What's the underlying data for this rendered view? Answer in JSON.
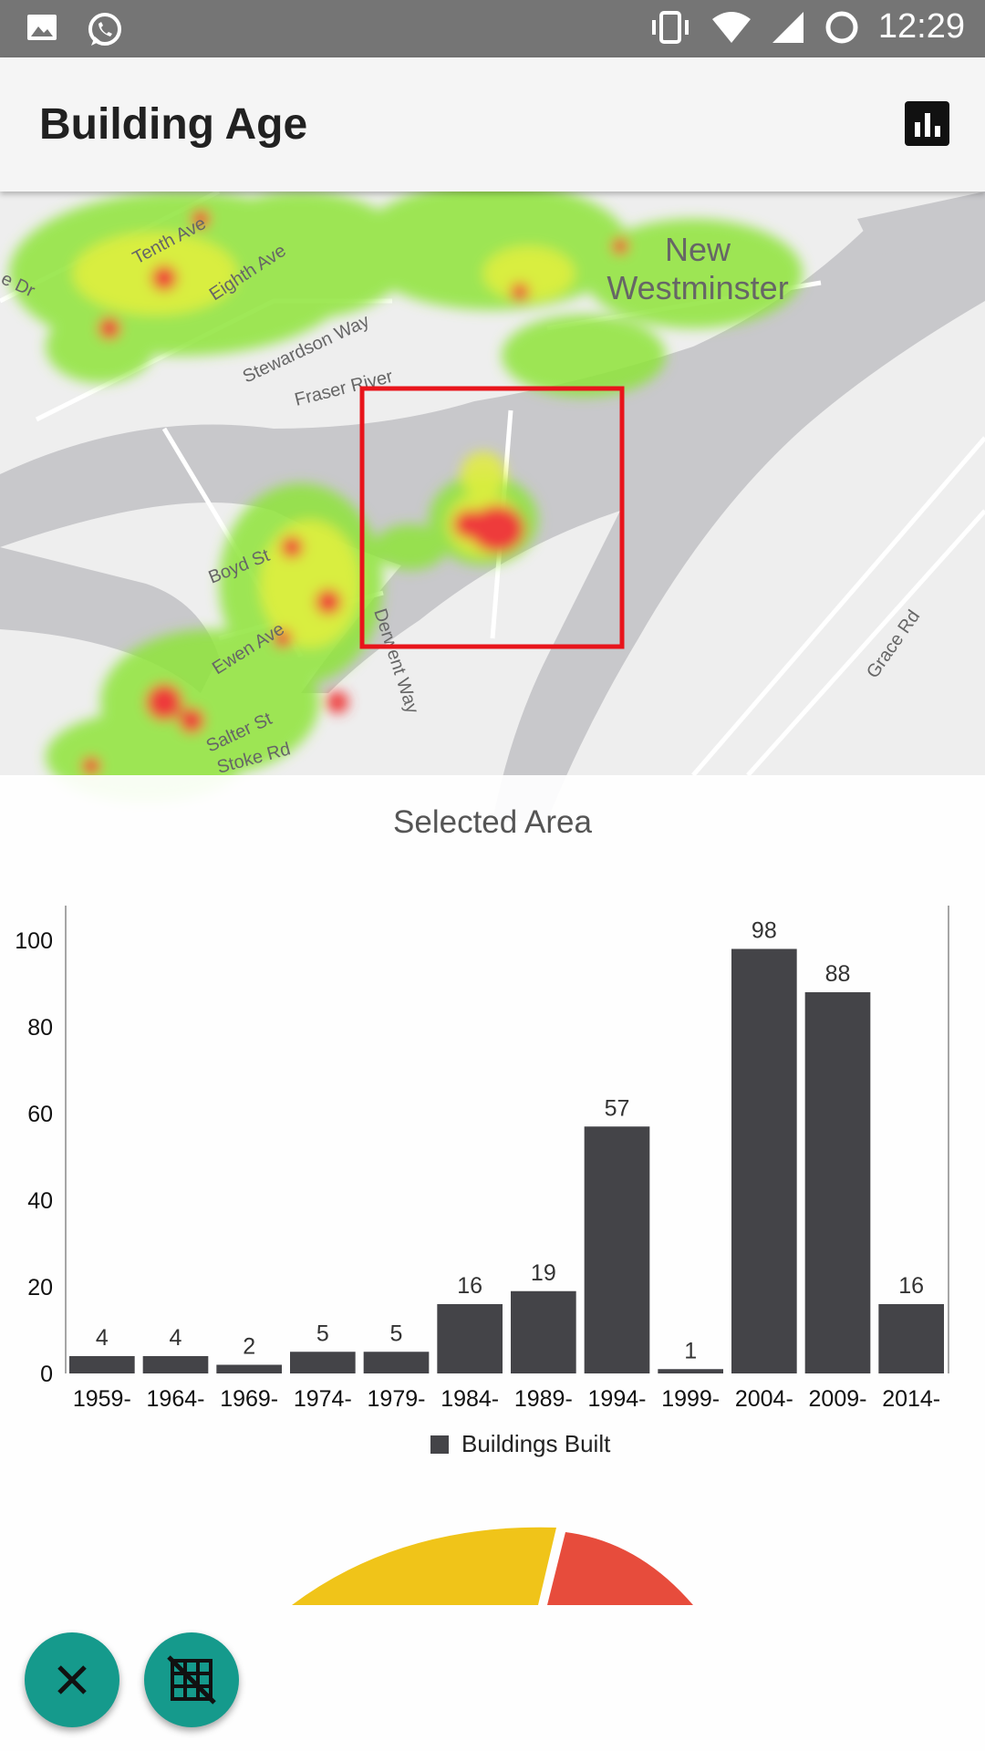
{
  "status_bar": {
    "time": "12:29",
    "left_icons": [
      "image-icon",
      "whatsapp-icon"
    ],
    "right_icons": [
      "vibrate-icon",
      "wifi-icon",
      "signal-icon",
      "sync-icon"
    ]
  },
  "app_bar": {
    "title": "Building Age",
    "action_icon": "bar-chart-icon"
  },
  "map": {
    "labels": [
      "New",
      "Westminster",
      "Tenth Ave",
      "Eighth Ave",
      "Stewardson Way",
      "Fraser River",
      "Boyd St",
      "Ewen Ave",
      "Salter St",
      "Derwent Way",
      "Grace Rd",
      "Stoke Rd",
      "e Dr"
    ],
    "selection_color": "#e8141b"
  },
  "panel": {
    "title": "Selected Area"
  },
  "chart_data": {
    "type": "bar",
    "categories": [
      "1959-",
      "1964-",
      "1969-",
      "1974-",
      "1979-",
      "1984-",
      "1989-",
      "1994-",
      "1999-",
      "2004-",
      "2009-",
      "2014-"
    ],
    "series": [
      {
        "name": "Buildings Built",
        "values": [
          4,
          4,
          2,
          5,
          5,
          16,
          19,
          57,
          1,
          98,
          88,
          16
        ]
      }
    ],
    "y_ticks": [
      "0",
      "20",
      "40",
      "60",
      "80",
      "100"
    ],
    "ylim": [
      0,
      108
    ],
    "data_labels": true,
    "legend": "bottom-center",
    "bar_color": "#444448"
  },
  "gauge": {
    "colors": [
      "#f0c419",
      "#e74c3c"
    ]
  },
  "fabs": {
    "close_icon": "close-icon",
    "grid_off_icon": "grid-off-icon",
    "color": "#159a8c"
  }
}
